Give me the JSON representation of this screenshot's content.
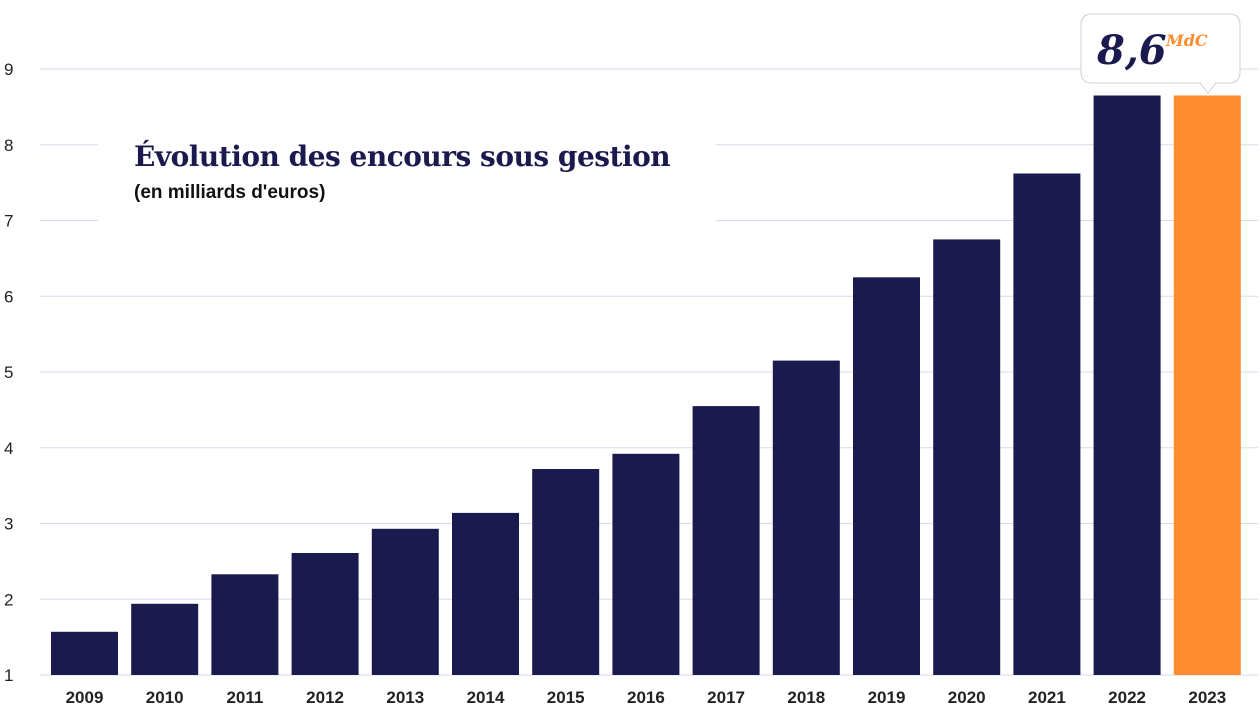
{
  "chart_data": {
    "type": "bar",
    "title": "Évolution des encours sous gestion",
    "subtitle": "(en milliards d'euros)",
    "categories": [
      "2009",
      "2010",
      "2011",
      "2012",
      "2013",
      "2014",
      "2015",
      "2016",
      "2017",
      "2018",
      "2019",
      "2020",
      "2021",
      "2022",
      "2023"
    ],
    "values": [
      1.57,
      1.94,
      2.33,
      2.61,
      2.93,
      3.14,
      3.72,
      3.92,
      4.55,
      5.15,
      6.25,
      6.75,
      7.62,
      8.65,
      8.65
    ],
    "yticks": [
      "1",
      "2",
      "3",
      "4",
      "5",
      "6",
      "7",
      "8",
      "9"
    ],
    "ylim": [
      1,
      9.3
    ],
    "grid": true,
    "legend": "none",
    "colors": {
      "bar": "#1b1a4f",
      "highlight": "#ff8c2e",
      "grid": "#d8d9ec"
    },
    "highlight_index": 14,
    "annotation": {
      "category": "2023",
      "value_text": "8,6",
      "unit_text": "MdC"
    }
  }
}
